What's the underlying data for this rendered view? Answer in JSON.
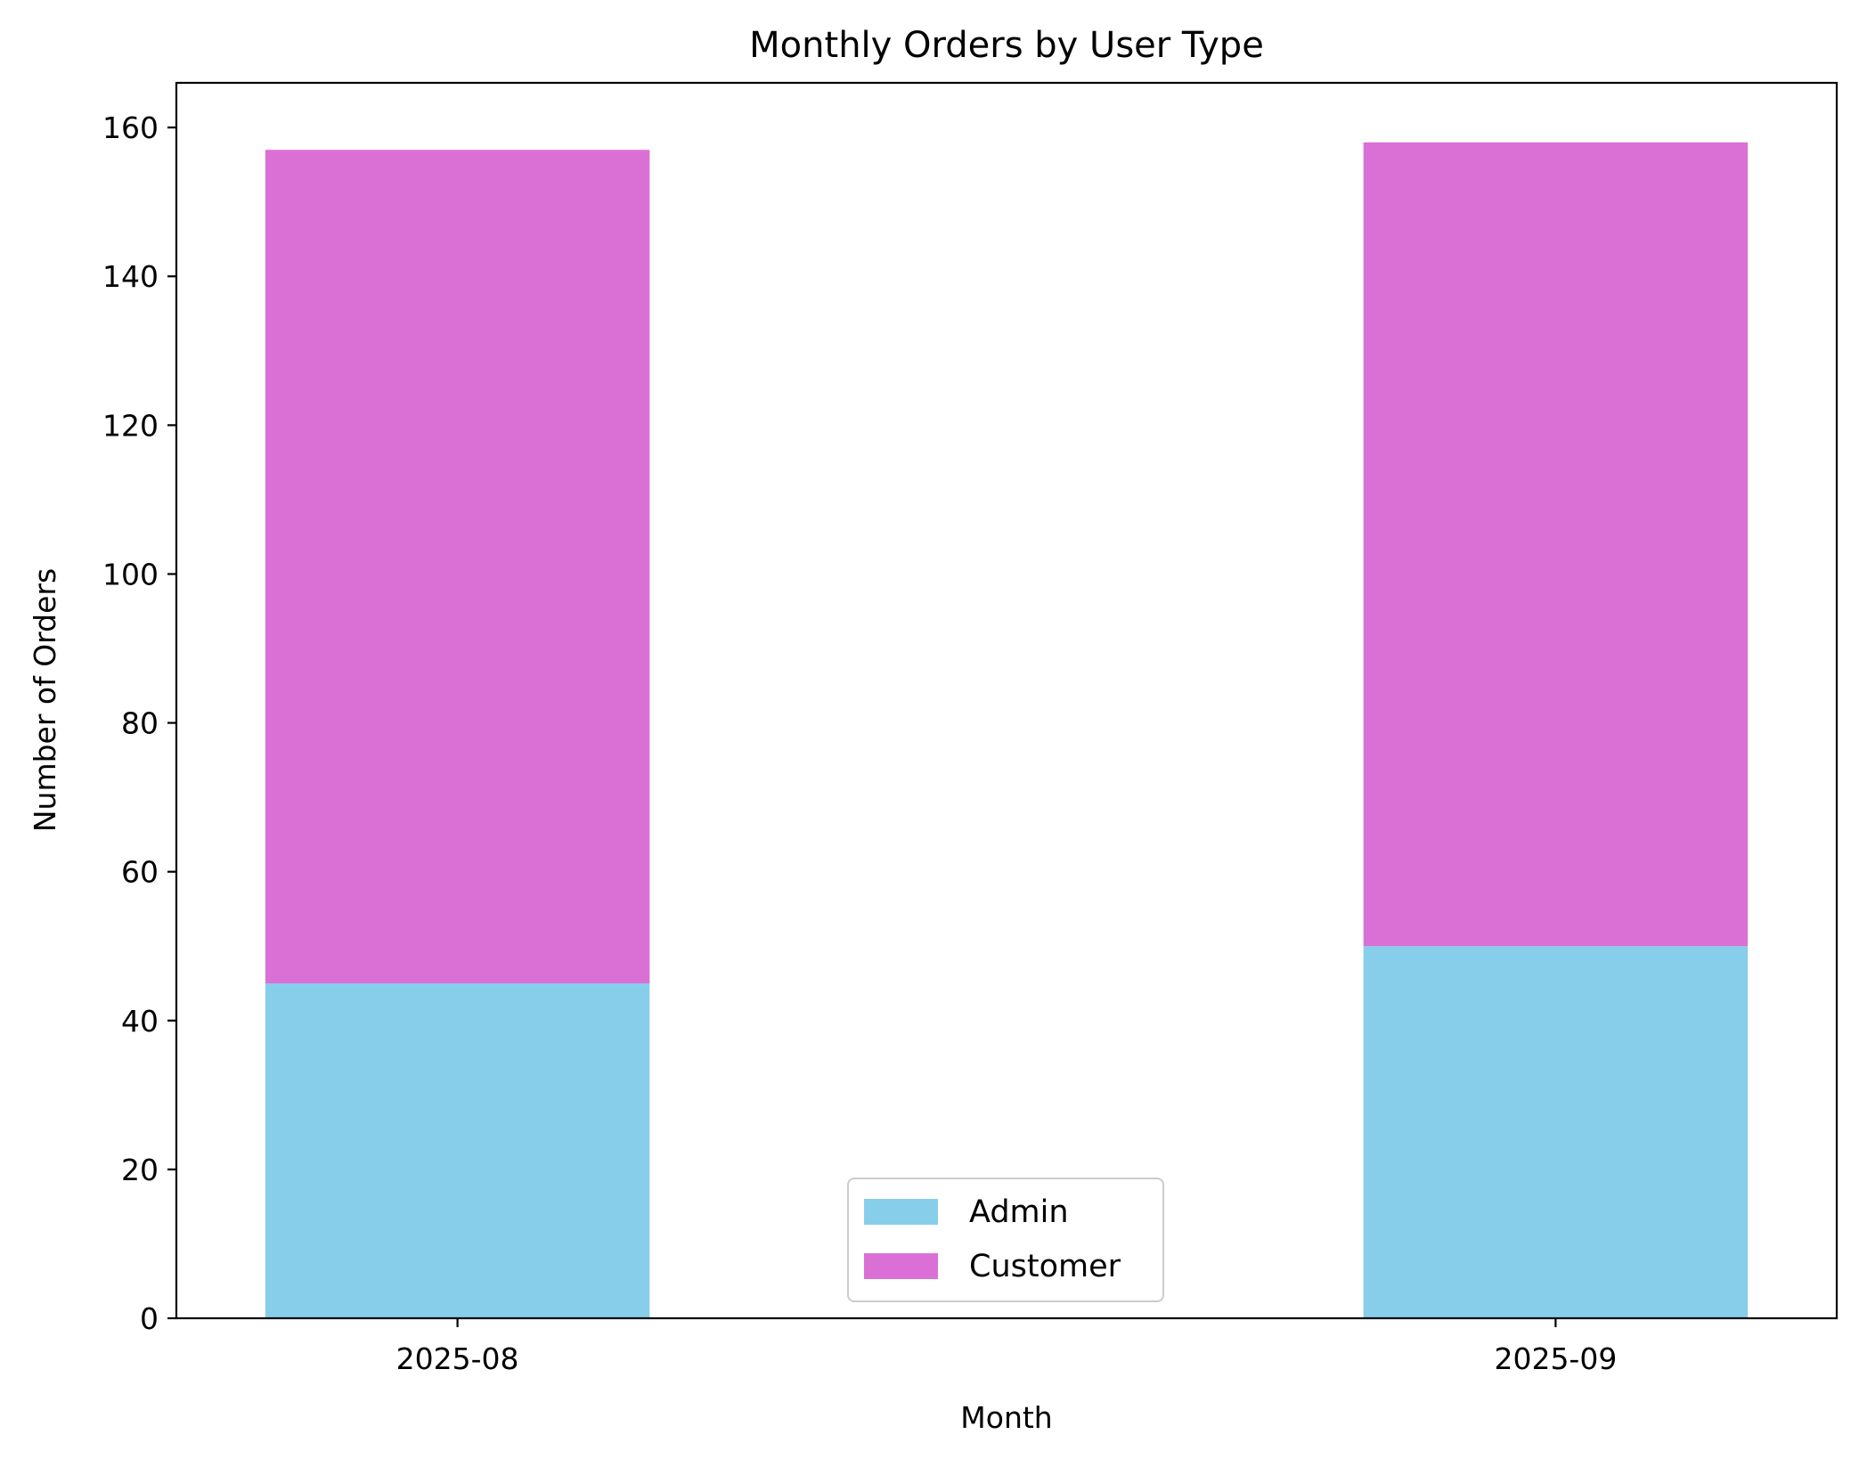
{
  "chart_data": {
    "type": "bar",
    "stacked": true,
    "title": "Monthly Orders by User Type",
    "xlabel": "Month",
    "ylabel": "Number of Orders",
    "categories": [
      "2025-08",
      "2025-09"
    ],
    "series": [
      {
        "name": "Admin",
        "color": "#87CEEB",
        "values": [
          45,
          50
        ]
      },
      {
        "name": "Customer",
        "color": "#DA70D6",
        "values": [
          112,
          108
        ]
      }
    ],
    "ylim": [
      0,
      166
    ],
    "yticks": [
      0,
      20,
      40,
      60,
      80,
      100,
      120,
      140,
      160
    ],
    "grid": false,
    "legend_position": "bottom-center"
  }
}
